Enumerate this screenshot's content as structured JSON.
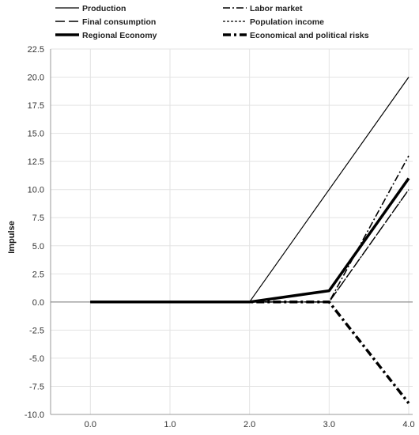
{
  "chart_data": {
    "type": "line",
    "title": "",
    "xlabel": "",
    "ylabel": "Impulse",
    "x": [
      0.0,
      1.0,
      2.0,
      3.0,
      4.0
    ],
    "x_tick_labels": [
      "0.0",
      "1.0",
      "2.0",
      "3.0",
      "4.0"
    ],
    "y_tick_labels": [
      "22.5",
      "20.0",
      "17.5",
      "15.0",
      "12.5",
      "10.0",
      "7.5",
      "5.0",
      "2.5",
      "0.0",
      "-2.5",
      "-5.0",
      "-7.5",
      "-10.0"
    ],
    "xlim": [
      -0.5,
      4.05
    ],
    "ylim": [
      -10.0,
      22.5
    ],
    "grid": true,
    "legend_position": "top",
    "series": [
      {
        "name": "Production",
        "values": [
          0,
          0,
          0,
          10,
          20
        ],
        "style": "solid",
        "width": 1.2
      },
      {
        "name": "Labor market",
        "values": [
          0,
          0,
          0,
          0,
          13
        ],
        "style": "dashdot",
        "width": 1.6
      },
      {
        "name": "Final consumption",
        "values": [
          0,
          0,
          0,
          0,
          10
        ],
        "style": "longdash",
        "width": 1.4
      },
      {
        "name": "Population income",
        "values": [
          0,
          0,
          0,
          0,
          10
        ],
        "style": "dashed",
        "width": 1.3
      },
      {
        "name": "Regional Economy",
        "values": [
          0,
          0,
          0,
          1,
          11
        ],
        "style": "solid",
        "width": 3.5
      },
      {
        "name": "Economical and political risks",
        "values": [
          0,
          0,
          0,
          0,
          -9
        ],
        "style": "heavydashdot",
        "width": 3.5
      }
    ]
  },
  "colors": {
    "line": "#000000",
    "grid": "#e3e3e3",
    "axis": "#999999",
    "zero_line": "#777777"
  }
}
